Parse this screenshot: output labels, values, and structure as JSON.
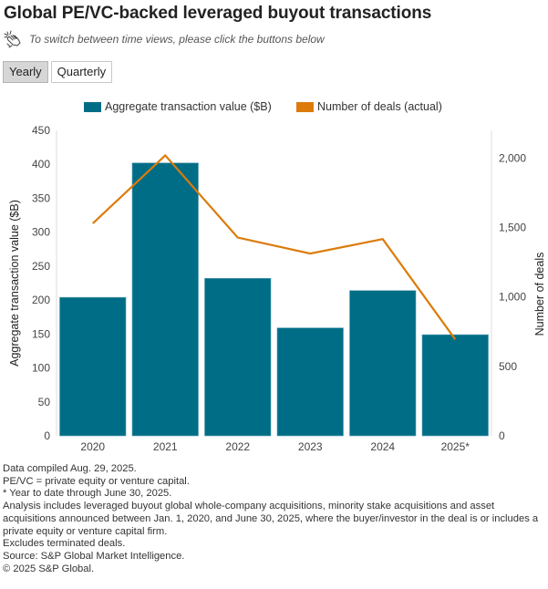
{
  "header": {
    "title": "Global PE/VC-backed leveraged buyout transactions",
    "hint_icon": "hand-pointer-click-icon",
    "hint": "To switch between time views, please click the buttons below"
  },
  "toggle": {
    "buttons": [
      {
        "label": "Yearly",
        "active": true
      },
      {
        "label": "Quarterly",
        "active": false
      }
    ]
  },
  "colors": {
    "bar": "#006d87",
    "line": "#dc7b0a",
    "axis": "#dddddd"
  },
  "chart_data": {
    "type": "bar+line",
    "categories": [
      "2020",
      "2021",
      "2022",
      "2023",
      "2024",
      "2025*"
    ],
    "series": [
      {
        "name": "Aggregate transaction value ($B)",
        "type": "bar",
        "axis": "left",
        "values": [
          204,
          402,
          232,
          159,
          214,
          149
        ]
      },
      {
        "name": "Number of deals (actual)",
        "type": "line",
        "axis": "right",
        "values": [
          1530,
          2020,
          1428,
          1313,
          1417,
          695
        ]
      }
    ],
    "left_axis": {
      "label": "Aggregate transaction value ($B)",
      "ylim": [
        0,
        450
      ],
      "ticks": [
        "0",
        "50",
        "100",
        "150",
        "200",
        "250",
        "300",
        "350",
        "400",
        "450"
      ]
    },
    "right_axis": {
      "label": "Number of deals",
      "ylim": [
        0,
        2200
      ],
      "ticks": [
        "0",
        "500",
        "1,000",
        "1,500",
        "2,000"
      ]
    },
    "legend": {
      "position": "top",
      "items": [
        "Aggregate transaction value ($B)",
        "Number of deals (actual)"
      ]
    },
    "grid": false
  },
  "notes": [
    "Data compiled Aug. 29, 2025.",
    "PE/VC = private equity or venture capital.",
    "* Year to date through June 30, 2025.",
    "Analysis includes leveraged buyout global whole-company acquisitions, minority stake acquisitions and asset acquisitions announced between Jan. 1, 2020, and June 30, 2025, where the buyer/investor in the deal is or includes a private equity or venture capital firm.",
    "Excludes terminated deals.",
    "Source: S&P Global Market Intelligence.",
    "© 2025 S&P Global."
  ]
}
